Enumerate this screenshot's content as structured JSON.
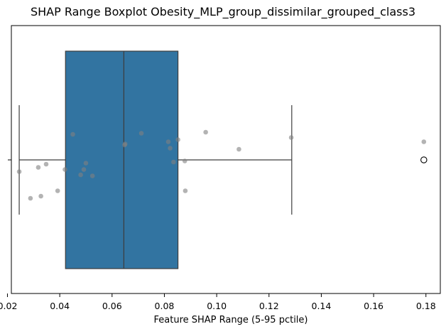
{
  "chart_data": {
    "type": "boxplot",
    "title": "SHAP Range Boxplot Obesity_MLP_group_dissimilar_grouped_class3",
    "xlabel": "Feature SHAP Range (5-95 pctile)",
    "ylabel": "",
    "xlim": [
      0.0215,
      0.1855
    ],
    "xticks": [
      0.02,
      0.04,
      0.06,
      0.08,
      0.1,
      0.12,
      0.14,
      0.16,
      0.18
    ],
    "xtick_labels": [
      "0.02",
      "0.04",
      "0.06",
      "0.08",
      "0.10",
      "0.12",
      "0.14",
      "0.16",
      "0.18"
    ],
    "box": {
      "whisker_low": 0.0245,
      "q1": 0.0422,
      "median": 0.0645,
      "q3": 0.0852,
      "whisker_high": 0.1287,
      "outliers": [
        0.1792
      ]
    },
    "points": [
      {
        "x": 0.0245,
        "jitter": -0.11
      },
      {
        "x": 0.0288,
        "jitter": -0.36
      },
      {
        "x": 0.0318,
        "jitter": -0.07
      },
      {
        "x": 0.0328,
        "jitter": -0.34
      },
      {
        "x": 0.0348,
        "jitter": -0.04
      },
      {
        "x": 0.0392,
        "jitter": -0.29
      },
      {
        "x": 0.042,
        "jitter": -0.09
      },
      {
        "x": 0.045,
        "jitter": 0.24
      },
      {
        "x": 0.048,
        "jitter": -0.14
      },
      {
        "x": 0.0492,
        "jitter": -0.09
      },
      {
        "x": 0.05,
        "jitter": -0.03
      },
      {
        "x": 0.0525,
        "jitter": -0.15
      },
      {
        "x": 0.0648,
        "jitter": 0.14
      },
      {
        "x": 0.065,
        "jitter": 0.15
      },
      {
        "x": 0.0712,
        "jitter": 0.25
      },
      {
        "x": 0.0815,
        "jitter": 0.17
      },
      {
        "x": 0.0822,
        "jitter": 0.11
      },
      {
        "x": 0.0835,
        "jitter": -0.02
      },
      {
        "x": 0.0852,
        "jitter": 0.19
      },
      {
        "x": 0.0878,
        "jitter": -0.01
      },
      {
        "x": 0.088,
        "jitter": -0.29
      },
      {
        "x": 0.0958,
        "jitter": 0.26
      },
      {
        "x": 0.1085,
        "jitter": 0.1
      },
      {
        "x": 0.1285,
        "jitter": 0.21
      },
      {
        "x": 0.1792,
        "jitter": 0.17
      }
    ],
    "colors": {
      "box_fill": "#3274a1",
      "line": "#3d3d3d",
      "point": "#808080"
    },
    "grid": false,
    "legend": "none"
  }
}
